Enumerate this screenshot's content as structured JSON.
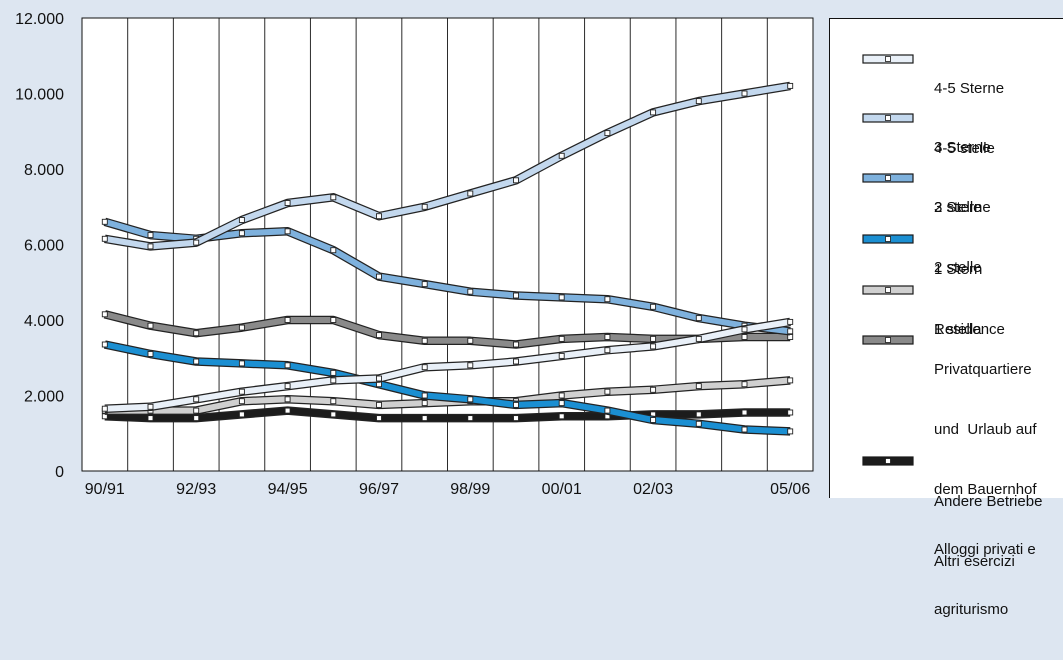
{
  "chart_data": {
    "type": "line",
    "categories": [
      "90/91",
      "",
      "92/93",
      "",
      "94/95",
      "",
      "96/97",
      "",
      "98/99",
      "",
      "00/01",
      "",
      "02/03",
      "",
      "",
      "05/06"
    ],
    "y_ticks": [
      0,
      2000,
      4000,
      6000,
      8000,
      10000,
      12000
    ],
    "y_tick_labels": [
      "0",
      "2.000",
      "4.000",
      "6.000",
      "8.000",
      "10.000",
      "12.000"
    ],
    "ylim": [
      0,
      12000
    ],
    "grid": {
      "vertical": true,
      "horizontal": false
    },
    "legend_position": "right",
    "series": [
      {
        "legend_lines": [
          "4-5 Sterne",
          "4-5 stelle"
        ],
        "color": "#e9f0f8",
        "values": [
          1650,
          1700,
          1900,
          2100,
          2250,
          2400,
          2450,
          2750,
          2800,
          2900,
          3050,
          3200,
          3300,
          3500,
          3750,
          3950
        ]
      },
      {
        "legend_lines": [
          "3 Sterne",
          "3 stelle"
        ],
        "color": "#c3d8ee",
        "values": [
          6150,
          5950,
          6050,
          6650,
          7100,
          7250,
          6750,
          7000,
          7350,
          7700,
          8350,
          8950,
          9500,
          9800,
          10000,
          10200
        ]
      },
      {
        "legend_lines": [
          "2 Sterne",
          "2 stelle"
        ],
        "color": "#7eb1dd",
        "values": [
          6600,
          6250,
          6150,
          6300,
          6350,
          5850,
          5150,
          4950,
          4750,
          4650,
          4600,
          4550,
          4350,
          4050,
          3850,
          3700
        ]
      },
      {
        "legend_lines": [
          "1 Stern",
          "1 stella"
        ],
        "color": "#1b8fd2",
        "values": [
          3350,
          3100,
          2900,
          2850,
          2800,
          2600,
          2300,
          2000,
          1900,
          1750,
          1800,
          1600,
          1350,
          1250,
          1100,
          1050
        ]
      },
      {
        "legend_lines": [
          "Residence"
        ],
        "color": "#d0d0d0",
        "values": [
          1600,
          1600,
          1600,
          1850,
          1900,
          1850,
          1750,
          1800,
          1850,
          1850,
          2000,
          2100,
          2150,
          2250,
          2300,
          2400
        ]
      },
      {
        "legend_lines": [
          "Privatquartiere",
          "und  Urlaub auf",
          "dem Bauernhof",
          "Alloggi privati e",
          "agriturismo"
        ],
        "color": "#8a8a8a",
        "values": [
          4150,
          3850,
          3650,
          3800,
          4000,
          4000,
          3600,
          3450,
          3450,
          3350,
          3500,
          3550,
          3500,
          3500,
          3550,
          3550
        ]
      },
      {
        "legend_lines": [
          "Andere Betriebe",
          "Altri esercizi"
        ],
        "color": "#1c1c1c",
        "values": [
          1450,
          1400,
          1400,
          1500,
          1600,
          1500,
          1400,
          1400,
          1400,
          1400,
          1450,
          1450,
          1500,
          1500,
          1550,
          1550
        ]
      }
    ]
  }
}
